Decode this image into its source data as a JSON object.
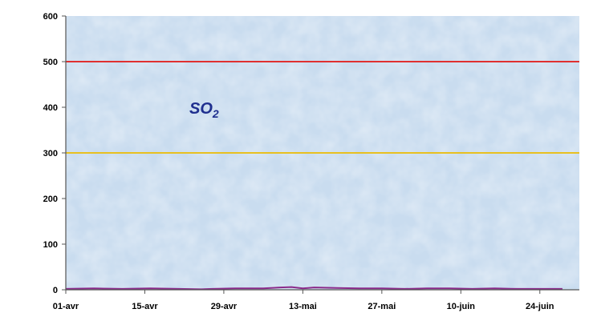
{
  "chart_data": {
    "type": "line",
    "title": "",
    "xlabel": "",
    "ylabel": "",
    "ylim": [
      0,
      600
    ],
    "yticks": [
      0,
      100,
      200,
      300,
      400,
      500,
      600
    ],
    "x_tick_labels": [
      "01-avr",
      "15-avr",
      "29-avr",
      "13-mai",
      "27-mai",
      "10-juin",
      "24-juin"
    ],
    "x_range_days": [
      0,
      91
    ],
    "x_tick_days": [
      0,
      14,
      28,
      42,
      56,
      70,
      84
    ],
    "grid": false,
    "legend": "none",
    "annotation": {
      "text": "SO",
      "subscript": "2",
      "color": "#1f2f8f"
    },
    "thresholds": [
      {
        "value": 500,
        "color": "#e03030"
      },
      {
        "value": 300,
        "color": "#e8c020"
      }
    ],
    "series": [
      {
        "color": "#8a2a8a",
        "x_days": [
          0,
          5,
          10,
          15,
          20,
          24,
          26,
          30,
          35,
          38,
          40,
          42,
          44,
          48,
          52,
          56,
          60,
          64,
          68,
          72,
          76,
          80,
          84,
          88
        ],
        "values": [
          2,
          3,
          2,
          3,
          2,
          1,
          2,
          3,
          3,
          5,
          6,
          3,
          5,
          4,
          3,
          3,
          2,
          3,
          3,
          2,
          3,
          2,
          2,
          2
        ]
      }
    ],
    "colors": {
      "plot_background": "#c9dcef",
      "axis": "#555555"
    }
  }
}
